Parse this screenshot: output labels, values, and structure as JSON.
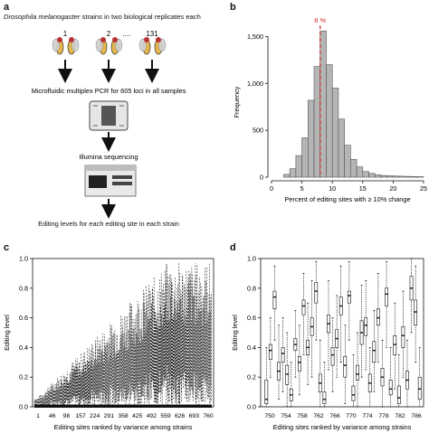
{
  "panels": {
    "a": {
      "letter": "a",
      "title_italic": "Drosophila melanogaster",
      "title_rest": " strains in two biological replicates each",
      "strain_labels": [
        "1",
        "2",
        "....",
        "131"
      ],
      "step1": "Microfluidic multiplex PCR for 605 loci in all samples",
      "step2": "Illumina sequencing",
      "step3": "Editing levels for each editing site in each strain"
    },
    "b": {
      "letter": "b"
    },
    "c": {
      "letter": "c"
    },
    "d": {
      "letter": "d"
    }
  },
  "colors": {
    "histogram_bar": "#b5b5b5",
    "median_line": "#d0312d",
    "fly_body": "#e8b84a",
    "fly_wing": "#d0d0d0",
    "ink": "#111111"
  },
  "chart_data": [
    {
      "panel": "b",
      "type": "bar",
      "xlabel": "Percent of editing sites with ≥ 10% change",
      "ylabel": "Frequency",
      "xlim": [
        0,
        25
      ],
      "ylim": [
        0,
        1600
      ],
      "xticks": [
        0,
        5,
        10,
        15,
        20,
        25
      ],
      "yticks": [
        0,
        500,
        1000,
        1500
      ],
      "ytick_labels": [
        "0",
        "500",
        "1,000",
        "1,500"
      ],
      "bin_width": 1,
      "bin_starts": [
        2,
        3,
        4,
        5,
        6,
        7,
        8,
        9,
        10,
        11,
        12,
        13,
        14,
        15,
        16,
        17,
        18,
        19,
        20,
        21,
        22,
        23,
        24
      ],
      "values": [
        30,
        90,
        230,
        420,
        820,
        1180,
        1560,
        1200,
        950,
        620,
        340,
        190,
        110,
        60,
        40,
        25,
        18,
        15,
        12,
        10,
        8,
        6,
        5
      ],
      "annotation": {
        "text": "8 %",
        "x": 8
      }
    },
    {
      "panel": "c",
      "type": "line",
      "xlabel": "Editing sites ranked by variance among strains",
      "ylabel": "Editing level",
      "ylim": [
        0,
        1.0
      ],
      "yticks": [
        "0.0",
        "0.2",
        "0.4",
        "0.6",
        "0.8",
        "1.0"
      ],
      "xtick_labels": [
        "1",
        "46",
        "98",
        "157",
        "224",
        "291",
        "358",
        "425",
        "492",
        "559",
        "626",
        "693",
        "760"
      ],
      "n_sites": 780
    },
    {
      "panel": "d",
      "type": "box",
      "xlabel": "Editing sites ranked by variance among strains",
      "ylabel": "Editing level",
      "ylim": [
        0,
        1.0
      ],
      "yticks": [
        "0.0",
        "0.2",
        "0.4",
        "0.6",
        "0.8",
        "1.0"
      ],
      "xtick_labels": [
        "750",
        "754",
        "758",
        "762",
        "766",
        "770",
        "774",
        "778",
        "782",
        "786"
      ],
      "boxes": [
        {
          "q1": 0.02,
          "med": 0.05,
          "q3": 0.18,
          "lo": 0.0,
          "hi": 0.4
        },
        {
          "q1": 0.32,
          "med": 0.38,
          "q3": 0.42,
          "lo": 0.2,
          "hi": 0.6
        },
        {
          "q1": 0.66,
          "med": 0.74,
          "q3": 0.78,
          "lo": 0.45,
          "hi": 0.95
        },
        {
          "q1": 0.18,
          "med": 0.24,
          "q3": 0.3,
          "lo": 0.05,
          "hi": 0.55
        },
        {
          "q1": 0.3,
          "med": 0.36,
          "q3": 0.4,
          "lo": 0.1,
          "hi": 0.6
        },
        {
          "q1": 0.15,
          "med": 0.22,
          "q3": 0.28,
          "lo": 0.0,
          "hi": 0.5
        },
        {
          "q1": 0.04,
          "med": 0.08,
          "q3": 0.12,
          "lo": 0.0,
          "hi": 0.3
        },
        {
          "q1": 0.38,
          "med": 0.42,
          "q3": 0.46,
          "lo": 0.2,
          "hi": 0.65
        },
        {
          "q1": 0.24,
          "med": 0.3,
          "q3": 0.34,
          "lo": 0.08,
          "hi": 0.55
        },
        {
          "q1": 0.62,
          "med": 0.68,
          "q3": 0.72,
          "lo": 0.35,
          "hi": 0.9
        },
        {
          "q1": 0.35,
          "med": 0.4,
          "q3": 0.45,
          "lo": 0.15,
          "hi": 0.7
        },
        {
          "q1": 0.48,
          "med": 0.54,
          "q3": 0.6,
          "lo": 0.2,
          "hi": 0.85
        },
        {
          "q1": 0.7,
          "med": 0.78,
          "q3": 0.84,
          "lo": 0.45,
          "hi": 0.98
        },
        {
          "q1": 0.1,
          "med": 0.16,
          "q3": 0.22,
          "lo": 0.0,
          "hi": 0.45
        },
        {
          "q1": 0.02,
          "med": 0.05,
          "q3": 0.1,
          "lo": 0.0,
          "hi": 0.3
        },
        {
          "q1": 0.5,
          "med": 0.56,
          "q3": 0.62,
          "lo": 0.25,
          "hi": 0.85
        },
        {
          "q1": 0.28,
          "med": 0.35,
          "q3": 0.4,
          "lo": 0.1,
          "hi": 0.6
        },
        {
          "q1": 0.4,
          "med": 0.46,
          "q3": 0.52,
          "lo": 0.2,
          "hi": 0.75
        },
        {
          "q1": 0.62,
          "med": 0.68,
          "q3": 0.74,
          "lo": 0.3,
          "hi": 0.95
        },
        {
          "q1": 0.2,
          "med": 0.28,
          "q3": 0.34,
          "lo": 0.02,
          "hi": 0.55
        },
        {
          "q1": 0.7,
          "med": 0.75,
          "q3": 0.78,
          "lo": 0.45,
          "hi": 0.98
        },
        {
          "q1": 0.04,
          "med": 0.08,
          "q3": 0.14,
          "lo": 0.0,
          "hi": 0.35
        },
        {
          "q1": 0.18,
          "med": 0.22,
          "q3": 0.28,
          "lo": 0.0,
          "hi": 0.5
        },
        {
          "q1": 0.42,
          "med": 0.5,
          "q3": 0.58,
          "lo": 0.2,
          "hi": 0.82
        },
        {
          "q1": 0.48,
          "med": 0.55,
          "q3": 0.6,
          "lo": 0.25,
          "hi": 0.85
        },
        {
          "q1": 0.1,
          "med": 0.16,
          "q3": 0.22,
          "lo": 0.0,
          "hi": 0.4
        },
        {
          "q1": 0.3,
          "med": 0.38,
          "q3": 0.44,
          "lo": 0.1,
          "hi": 0.65
        },
        {
          "q1": 0.55,
          "med": 0.6,
          "q3": 0.66,
          "lo": 0.3,
          "hi": 0.9
        },
        {
          "q1": 0.14,
          "med": 0.2,
          "q3": 0.26,
          "lo": 0.0,
          "hi": 0.45
        },
        {
          "q1": 0.68,
          "med": 0.76,
          "q3": 0.8,
          "lo": 0.4,
          "hi": 0.98
        },
        {
          "q1": 0.08,
          "med": 0.12,
          "q3": 0.18,
          "lo": 0.0,
          "hi": 0.4
        },
        {
          "q1": 0.35,
          "med": 0.42,
          "q3": 0.48,
          "lo": 0.12,
          "hi": 0.7
        },
        {
          "q1": 0.02,
          "med": 0.06,
          "q3": 0.14,
          "lo": 0.0,
          "hi": 0.35
        },
        {
          "q1": 0.4,
          "med": 0.48,
          "q3": 0.54,
          "lo": 0.2,
          "hi": 0.78
        },
        {
          "q1": 0.12,
          "med": 0.18,
          "q3": 0.24,
          "lo": 0.0,
          "hi": 0.45
        },
        {
          "q1": 0.72,
          "med": 0.8,
          "q3": 0.88,
          "lo": 0.5,
          "hi": 1.0
        },
        {
          "q1": 0.55,
          "med": 0.64,
          "q3": 0.72,
          "lo": 0.3,
          "hi": 0.95
        },
        {
          "q1": 0.05,
          "med": 0.12,
          "q3": 0.2,
          "lo": 0.0,
          "hi": 0.4
        }
      ]
    }
  ]
}
